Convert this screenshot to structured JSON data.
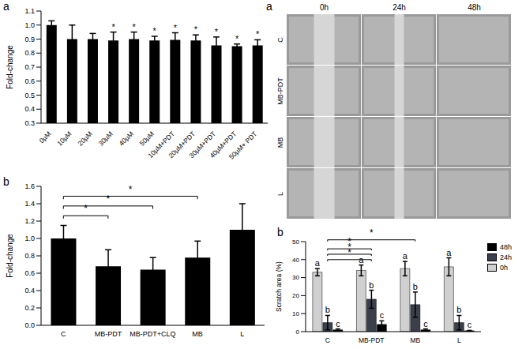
{
  "chart_data": [
    {
      "type": "bar",
      "panel_label": "a",
      "y_label": "Fold-change",
      "categories": [
        "0µM",
        "10µM",
        "20µM",
        "30µM",
        "40µM",
        "50µM",
        "10µM+PDT",
        "20µM+PDT",
        "30µM+PDT",
        "40µM+PDT",
        "50µM+ PDT"
      ],
      "values": [
        1.0,
        0.9,
        0.9,
        0.89,
        0.9,
        0.89,
        0.895,
        0.89,
        0.855,
        0.85,
        0.855
      ],
      "errors": [
        0.03,
        0.1,
        0.04,
        0.06,
        0.05,
        0.03,
        0.05,
        0.04,
        0.06,
        0.015,
        0.04
      ],
      "annotations": [
        null,
        null,
        null,
        "*",
        "*",
        "*",
        "*",
        "*",
        "*",
        "*",
        "*"
      ],
      "color": "#000000",
      "ylim": [
        0.3,
        1.1
      ],
      "yticks": [
        0.3,
        0.4,
        0.5,
        0.6,
        0.7,
        0.8,
        0.9,
        {
          "value": 1,
          "label": "1.0"
        },
        1.1
      ]
    },
    {
      "type": "bar",
      "panel_label": "b",
      "y_label": "Fold-change",
      "categories": [
        "C",
        "MB-PDT",
        "MB-PDT+CLQ",
        "MB",
        "L"
      ],
      "values": [
        1.0,
        0.68,
        0.64,
        0.78,
        1.1
      ],
      "errors": [
        0.15,
        0.19,
        0.14,
        0.19,
        0.3
      ],
      "color": "#000000",
      "ylim": [
        0,
        1.6
      ],
      "yticks": [
        {
          "value": 0,
          "label": "0.0"
        },
        0.2,
        0.4,
        0.6,
        0.8,
        {
          "value": 1,
          "label": "1.0"
        },
        1.2,
        1.4,
        1.6
      ],
      "comparisons": [
        {
          "from": "C",
          "to": "MB-PDT",
          "label": "*"
        },
        {
          "from": "C",
          "to": "MB-PDT+CLQ",
          "label": "*"
        },
        {
          "from": "C",
          "to": "MB",
          "label": "*"
        }
      ]
    },
    {
      "type": "bar",
      "panel_label": "b",
      "y_label": "Scratch area (%)",
      "categories": [
        "C",
        "MB-PDT",
        "MB",
        "L"
      ],
      "series": [
        {
          "name": "0h",
          "color": "#d0d0d0",
          "values": [
            33,
            34,
            35,
            36
          ],
          "errors": [
            2,
            3,
            4,
            5
          ],
          "annotations": [
            "a",
            "a",
            "a",
            "a"
          ]
        },
        {
          "name": "24h",
          "color": "#3a3f4b",
          "values": [
            5,
            18,
            15,
            5
          ],
          "errors": [
            4,
            5,
            7,
            4
          ],
          "annotations": [
            "b",
            "b",
            "b",
            "b"
          ]
        },
        {
          "name": "48h",
          "color": "#000000",
          "values": [
            1,
            4,
            1,
            0.5
          ],
          "errors": [
            0.5,
            2,
            0.5,
            0.2
          ],
          "annotations": [
            "c",
            "c",
            "c",
            "c"
          ]
        }
      ],
      "ylim": [
        0,
        50
      ],
      "yticks": [
        0,
        10,
        20,
        30,
        40,
        50
      ],
      "legend": "right",
      "comparisons": [
        {
          "from": "C",
          "to": "MB-PDT",
          "label": "*"
        },
        {
          "from": "C",
          "to": "MB-PDT",
          "label": "*"
        },
        {
          "from": "C",
          "to": "MB-PDT",
          "label": "*"
        },
        {
          "from": "C",
          "to": "MB",
          "label": "*"
        }
      ]
    }
  ],
  "image_panel": {
    "panel_label": "a",
    "columns": [
      "0h",
      "24h",
      "48h"
    ],
    "rows": [
      "C",
      "MB-PDT",
      "MB",
      "L"
    ]
  }
}
